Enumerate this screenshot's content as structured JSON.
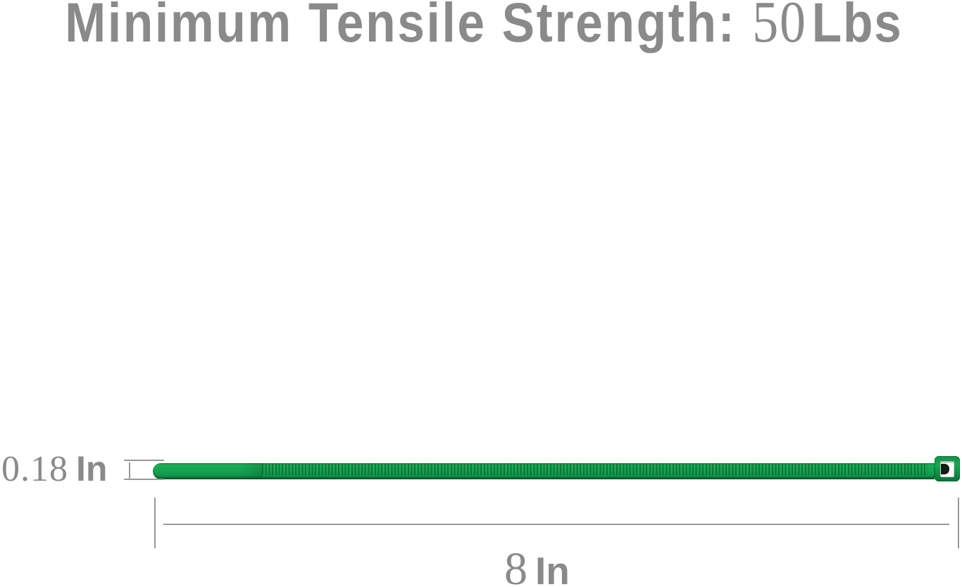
{
  "title": {
    "label": "Minimum Tensile Strength:",
    "value": "50",
    "unit": "Lbs"
  },
  "dimensions": {
    "width": {
      "value": "0.18",
      "unit": "In"
    },
    "length": {
      "value": "8",
      "unit": "In"
    }
  },
  "product": {
    "item": "cable-zip-tie",
    "color_name": "green"
  },
  "colors": {
    "text_gray": "#8a8a8a",
    "line_gray": "#999999",
    "tie_green": "#16a050",
    "tie_green_dark": "#0a7338",
    "tie_teeth": "#0b7c3c",
    "head_slot_white": "#fbfbfb",
    "pawl_dark": "#121c14",
    "page_bg": "#ffffff"
  }
}
